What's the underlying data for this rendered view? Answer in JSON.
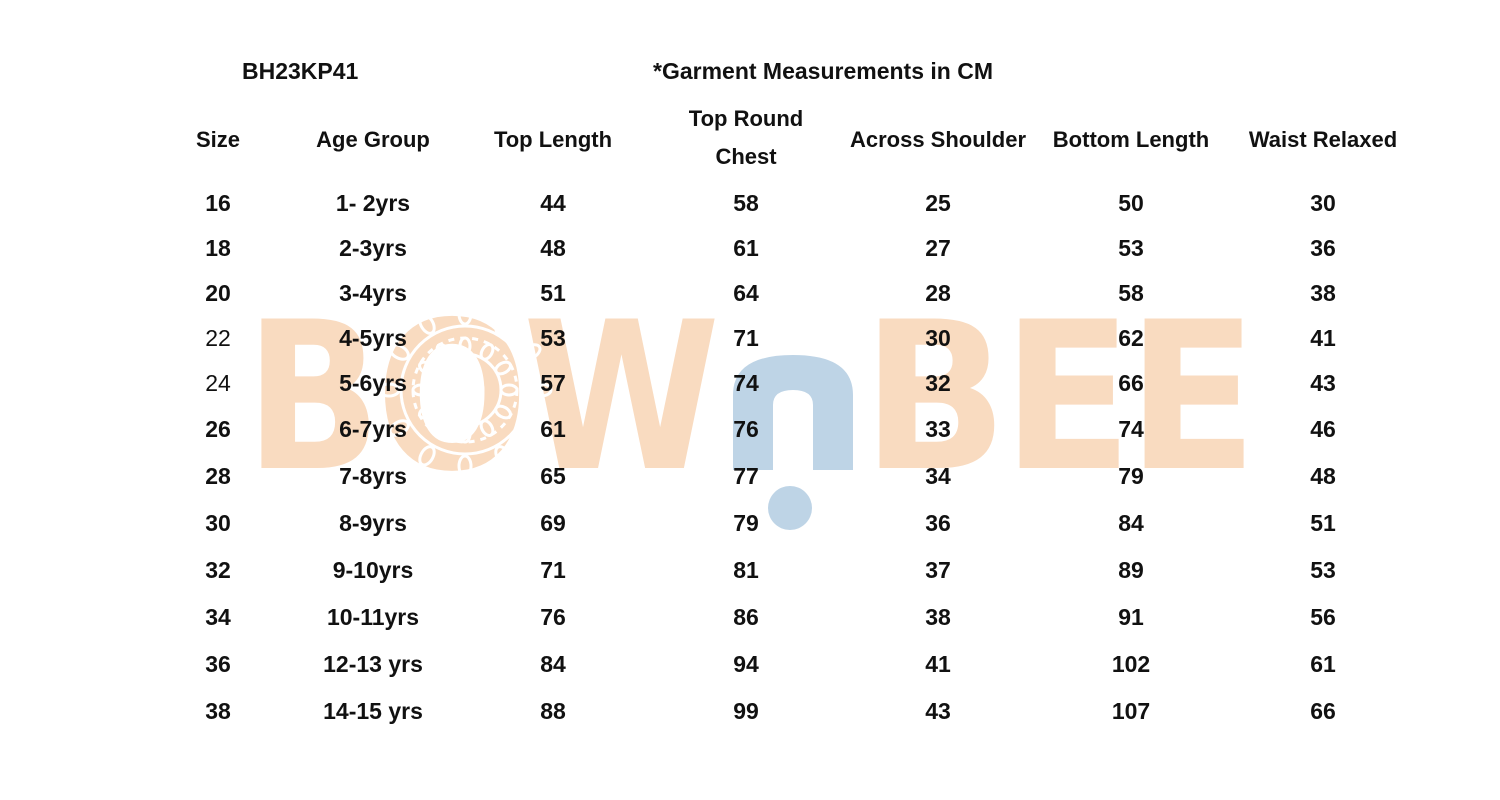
{
  "watermark": {
    "text_left": "BOW",
    "text_mid": "n",
    "text_right": "BEE",
    "icon": "mandala-icon",
    "color_primary": "#f9dbc0",
    "color_accent": "#bed4e6"
  },
  "style_code": "BH23KP41",
  "note": "*Garment Measurements in CM",
  "columns": [
    "Size",
    "Age Group",
    "Top Length",
    "Top Round Chest",
    "Across Shoulder",
    "Bottom Length",
    "Waist Relaxed"
  ],
  "rows": [
    {
      "size": "16",
      "age": "1- 2yrs",
      "top_length": "44",
      "chest": "58",
      "shoulder": "25",
      "bottom_length": "50",
      "waist": "30"
    },
    {
      "size": "18",
      "age": "2-3yrs",
      "top_length": "48",
      "chest": "61",
      "shoulder": "27",
      "bottom_length": "53",
      "waist": "36"
    },
    {
      "size": "20",
      "age": "3-4yrs",
      "top_length": "51",
      "chest": "64",
      "shoulder": "28",
      "bottom_length": "58",
      "waist": "38"
    },
    {
      "size": "22",
      "age": "4-5yrs",
      "top_length": "53",
      "chest": "71",
      "shoulder": "30",
      "bottom_length": "62",
      "waist": "41"
    },
    {
      "size": "24",
      "age": "5-6yrs",
      "top_length": "57",
      "chest": "74",
      "shoulder": "32",
      "bottom_length": "66",
      "waist": "43"
    },
    {
      "size": "26",
      "age": "6-7yrs",
      "top_length": "61",
      "chest": "76",
      "shoulder": "33",
      "bottom_length": "74",
      "waist": "46"
    },
    {
      "size": "28",
      "age": "7-8yrs",
      "top_length": "65",
      "chest": "77",
      "shoulder": "34",
      "bottom_length": "79",
      "waist": "48"
    },
    {
      "size": "30",
      "age": "8-9yrs",
      "top_length": "69",
      "chest": "79",
      "shoulder": "36",
      "bottom_length": "84",
      "waist": "51"
    },
    {
      "size": "32",
      "age": "9-10yrs",
      "top_length": "71",
      "chest": "81",
      "shoulder": "37",
      "bottom_length": "89",
      "waist": "53"
    },
    {
      "size": "34",
      "age": "10-11yrs",
      "top_length": "76",
      "chest": "86",
      "shoulder": "38",
      "bottom_length": "91",
      "waist": "56"
    },
    {
      "size": "36",
      "age": "12-13 yrs",
      "top_length": "84",
      "chest": "94",
      "shoulder": "41",
      "bottom_length": "102",
      "waist": "61"
    },
    {
      "size": "38",
      "age": "14-15 yrs",
      "top_length": "88",
      "chest": "99",
      "shoulder": "43",
      "bottom_length": "107",
      "waist": "66"
    }
  ]
}
